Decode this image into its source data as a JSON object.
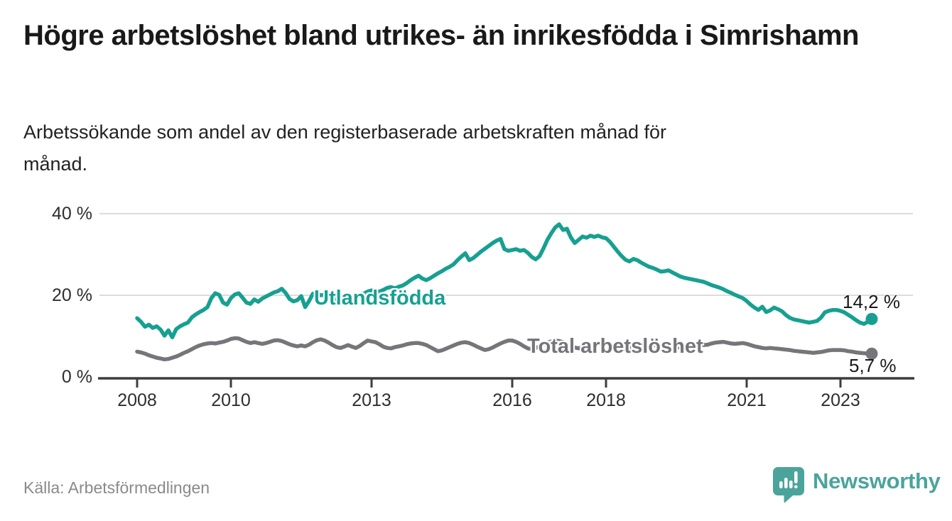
{
  "header": {
    "title": "Högre arbetslöshet bland utrikes- än inrikesfödda i Simrishamn",
    "subtitle": "Arbetssökande som andel av den registerbaserade arbetskraften månad för månad."
  },
  "footer": {
    "source": "Källa: Arbetsförmedlingen",
    "brand": "Newsworthy"
  },
  "colors": {
    "accent_teal": "#17a091",
    "series_gray": "#75757a",
    "logo_teal": "#4ba49c",
    "text_dark": "#191919",
    "text_muted": "#8a8a8a",
    "gridline": "#dcdcdc",
    "axis": "#3d3d3d"
  },
  "chart_data": {
    "type": "line",
    "frequency": "monthly",
    "x_start": "2008-01",
    "x_end": "2023-09",
    "ylim": [
      0,
      40
    ],
    "grid": "horizontal",
    "legend_position": "inline-labels",
    "y_tick_labels": [
      "40 %",
      "20 %",
      "0 %"
    ],
    "x_tick_labels": [
      "2008",
      "2010",
      "2013",
      "2016",
      "2018",
      "2021",
      "2023"
    ],
    "series": [
      {
        "name": "Utlandsfödda",
        "color": "#17a091",
        "end_label": "14,2 %",
        "end_value": 14.2,
        "values": [
          14.4,
          13.5,
          12.3,
          12.8,
          12.0,
          12.4,
          11.6,
          10.1,
          11.4,
          9.7,
          11.7,
          12.4,
          12.9,
          13.3,
          14.6,
          15.3,
          15.9,
          16.4,
          17.1,
          19.3,
          20.5,
          20.1,
          18.2,
          17.7,
          19.3,
          20.2,
          20.5,
          19.4,
          18.2,
          17.9,
          19.0,
          18.4,
          19.2,
          19.7,
          20.2,
          20.7,
          21.0,
          21.6,
          20.6,
          19.1,
          18.5,
          18.8,
          19.8,
          17.1,
          18.6,
          20.4,
          20.2,
          20.0,
          20.1,
          19.7,
          19.2,
          18.8,
          18.5,
          18.3,
          18.6,
          19.0,
          19.4,
          19.9,
          20.4,
          20.9,
          21.2,
          21.0,
          20.9,
          21.3,
          21.8,
          22.0,
          21.7,
          22.1,
          22.4,
          23.0,
          23.7,
          24.3,
          24.8,
          24.1,
          23.7,
          24.2,
          24.8,
          25.4,
          25.9,
          26.5,
          27.0,
          27.6,
          28.6,
          29.5,
          30.3,
          28.6,
          29.1,
          29.9,
          30.7,
          31.4,
          32.1,
          32.8,
          33.4,
          33.8,
          31.3,
          30.9,
          31.1,
          31.3,
          30.9,
          31.1,
          30.4,
          29.4,
          28.8,
          29.6,
          31.5,
          33.6,
          35.2,
          36.6,
          37.4,
          36.0,
          36.3,
          34.2,
          32.8,
          33.6,
          34.4,
          34.1,
          34.6,
          34.3,
          34.6,
          34.2,
          34.0,
          33.1,
          31.9,
          30.7,
          29.6,
          28.7,
          28.3,
          28.9,
          28.6,
          28.0,
          27.5,
          27.0,
          26.7,
          26.3,
          25.8,
          25.9,
          26.1,
          25.6,
          25.1,
          24.6,
          24.3,
          24.1,
          23.9,
          23.7,
          23.5,
          23.3,
          22.9,
          22.5,
          22.2,
          21.9,
          21.5,
          21.0,
          20.6,
          20.1,
          19.7,
          19.3,
          18.6,
          17.7,
          17.0,
          16.4,
          17.2,
          15.9,
          16.3,
          17.0,
          16.6,
          16.1,
          15.2,
          14.5,
          14.1,
          13.9,
          13.7,
          13.5,
          13.3,
          13.5,
          13.7,
          14.5,
          15.8,
          16.2,
          16.4,
          16.4,
          16.2,
          15.8,
          15.2,
          14.6,
          13.9,
          13.3,
          13.0,
          13.5,
          14.2
        ]
      },
      {
        "name": "Total arbetslöshet",
        "color": "#75757a",
        "end_label": "5,7 %",
        "end_value": 5.7,
        "values": [
          6.2,
          6.0,
          5.7,
          5.3,
          5.0,
          4.7,
          4.5,
          4.3,
          4.4,
          4.7,
          5.0,
          5.4,
          5.9,
          6.3,
          6.8,
          7.3,
          7.7,
          8.0,
          8.2,
          8.3,
          8.2,
          8.4,
          8.6,
          8.9,
          9.3,
          9.5,
          9.4,
          9.0,
          8.6,
          8.3,
          8.5,
          8.3,
          8.1,
          8.3,
          8.6,
          8.9,
          9.0,
          8.8,
          8.4,
          8.0,
          7.7,
          7.5,
          7.7,
          7.5,
          7.9,
          8.5,
          9.0,
          9.2,
          8.9,
          8.4,
          7.8,
          7.3,
          7.1,
          7.4,
          7.8,
          7.4,
          7.1,
          7.6,
          8.3,
          8.9,
          8.7,
          8.5,
          8.0,
          7.4,
          7.1,
          7.0,
          7.3,
          7.5,
          7.7,
          8.0,
          8.2,
          8.3,
          8.3,
          8.1,
          7.8,
          7.3,
          6.8,
          6.3,
          6.5,
          6.9,
          7.3,
          7.7,
          8.1,
          8.4,
          8.5,
          8.3,
          7.9,
          7.4,
          7.0,
          6.6,
          6.8,
          7.2,
          7.7,
          8.2,
          8.6,
          8.9,
          8.9,
          8.6,
          8.1,
          7.5,
          7.0,
          6.8,
          7.1,
          7.5,
          7.9,
          8.4,
          8.7,
          8.9,
          8.8,
          8.5,
          8.1,
          7.6,
          7.2,
          7.0,
          7.3,
          7.6,
          7.8,
          8.0,
          8.2,
          8.3,
          8.2,
          8.0,
          7.7,
          7.3,
          7.0,
          6.8,
          7.0,
          7.3,
          7.5,
          7.7,
          7.8,
          7.9,
          7.9,
          7.7,
          7.5,
          7.2,
          7.0,
          6.9,
          7.1,
          7.3,
          7.4,
          7.6,
          7.7,
          7.8,
          7.9,
          7.8,
          7.9,
          8.2,
          8.4,
          8.5,
          8.6,
          8.4,
          8.2,
          8.1,
          8.2,
          8.3,
          8.1,
          7.8,
          7.5,
          7.3,
          7.1,
          7.0,
          7.1,
          7.0,
          6.9,
          6.8,
          6.7,
          6.6,
          6.4,
          6.3,
          6.2,
          6.1,
          6.0,
          5.9,
          6.0,
          6.1,
          6.3,
          6.5,
          6.6,
          6.6,
          6.6,
          6.5,
          6.3,
          6.2,
          6.0,
          5.9,
          5.8,
          5.7,
          5.7
        ]
      }
    ]
  }
}
